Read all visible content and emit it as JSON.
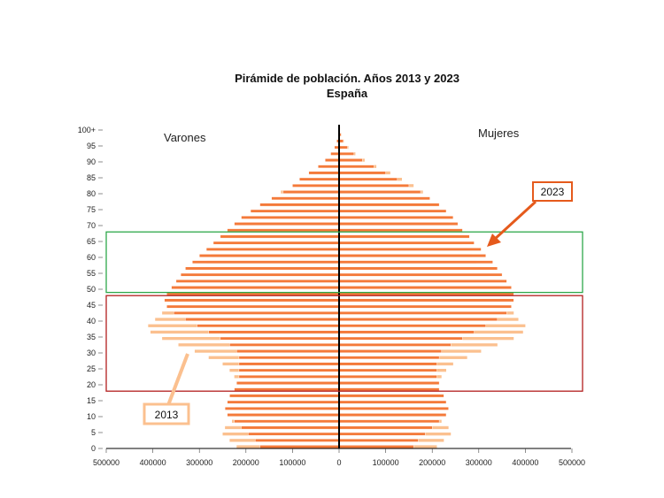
{
  "chart_data": {
    "type": "bar",
    "orientation": "horizontal-pyramid",
    "title": "Pirámide de población. Años 2013 y 2023",
    "subtitle": "España",
    "left_label": "Varones",
    "right_label": "Mujeres",
    "y_tick_labels": [
      "0",
      "5",
      "10",
      "15",
      "20",
      "25",
      "30",
      "35",
      "40",
      "45",
      "50",
      "55",
      "60",
      "65",
      "70",
      "75",
      "80",
      "85",
      "90",
      "95",
      "100+"
    ],
    "x_tick_labels": [
      "500000",
      "400000",
      "300000",
      "200000",
      "100000",
      "0",
      "100000",
      "200000",
      "300000",
      "400000",
      "500000"
    ],
    "xlim": [
      -500000,
      500000
    ],
    "ages": [
      0,
      2,
      4,
      6,
      8,
      10,
      12,
      14,
      16,
      18,
      20,
      22,
      24,
      26,
      28,
      30,
      32,
      34,
      36,
      38,
      40,
      42,
      44,
      46,
      48,
      50,
      52,
      54,
      56,
      58,
      60,
      62,
      64,
      66,
      68,
      70,
      72,
      74,
      76,
      78,
      80,
      82,
      84,
      86,
      88,
      90,
      92,
      94,
      96,
      98,
      100
    ],
    "series": [
      {
        "name": "2013",
        "color": "#fbc08f",
        "male": [
          220000,
          235000,
          250000,
          245000,
          230000,
          225000,
          225000,
          220000,
          215000,
          215000,
          220000,
          225000,
          235000,
          250000,
          280000,
          310000,
          345000,
          380000,
          405000,
          410000,
          395000,
          380000,
          370000,
          365000,
          360000,
          345000,
          330000,
          315000,
          300000,
          285000,
          275000,
          265000,
          250000,
          235000,
          215000,
          205000,
          195000,
          180000,
          160000,
          145000,
          125000,
          100000,
          75000,
          55000,
          35000,
          20000,
          10000,
          5000,
          2000,
          1000,
          500
        ],
        "female": [
          210000,
          225000,
          240000,
          235000,
          220000,
          215000,
          215000,
          210000,
          205000,
          205000,
          210000,
          220000,
          230000,
          245000,
          275000,
          305000,
          340000,
          375000,
          395000,
          400000,
          385000,
          375000,
          365000,
          360000,
          355000,
          345000,
          335000,
          320000,
          305000,
          295000,
          285000,
          275000,
          265000,
          255000,
          240000,
          235000,
          230000,
          220000,
          210000,
          195000,
          180000,
          160000,
          135000,
          110000,
          80000,
          55000,
          35000,
          20000,
          10000,
          5000,
          2000
        ]
      },
      {
        "name": "2023",
        "color": "#f47a3a",
        "male": [
          170000,
          180000,
          195000,
          210000,
          225000,
          240000,
          245000,
          240000,
          235000,
          225000,
          220000,
          215000,
          215000,
          215000,
          215000,
          220000,
          235000,
          255000,
          280000,
          305000,
          330000,
          355000,
          370000,
          375000,
          370000,
          360000,
          350000,
          340000,
          330000,
          315000,
          300000,
          285000,
          270000,
          255000,
          240000,
          225000,
          210000,
          190000,
          170000,
          145000,
          120000,
          100000,
          85000,
          65000,
          45000,
          30000,
          18000,
          10000,
          5000,
          2000,
          1000
        ],
        "female": [
          160000,
          170000,
          185000,
          200000,
          215000,
          230000,
          235000,
          230000,
          225000,
          215000,
          215000,
          210000,
          210000,
          210000,
          215000,
          220000,
          240000,
          265000,
          290000,
          315000,
          340000,
          360000,
          370000,
          375000,
          375000,
          370000,
          360000,
          350000,
          340000,
          330000,
          315000,
          305000,
          290000,
          280000,
          265000,
          255000,
          245000,
          230000,
          215000,
          195000,
          175000,
          150000,
          125000,
          100000,
          75000,
          50000,
          32000,
          18000,
          9000,
          4000,
          1500
        ]
      }
    ],
    "annotations": [
      {
        "text": "2023",
        "series": "2023"
      },
      {
        "text": "2013",
        "series": "2013"
      }
    ],
    "highlight_boxes": [
      {
        "name": "green-box",
        "age_range": [
          49,
          68
        ],
        "color": "#2ea84a"
      },
      {
        "name": "red-box",
        "age_range": [
          18,
          48
        ],
        "color": "#b21e1e"
      }
    ],
    "grid": false,
    "legend": "callouts"
  }
}
